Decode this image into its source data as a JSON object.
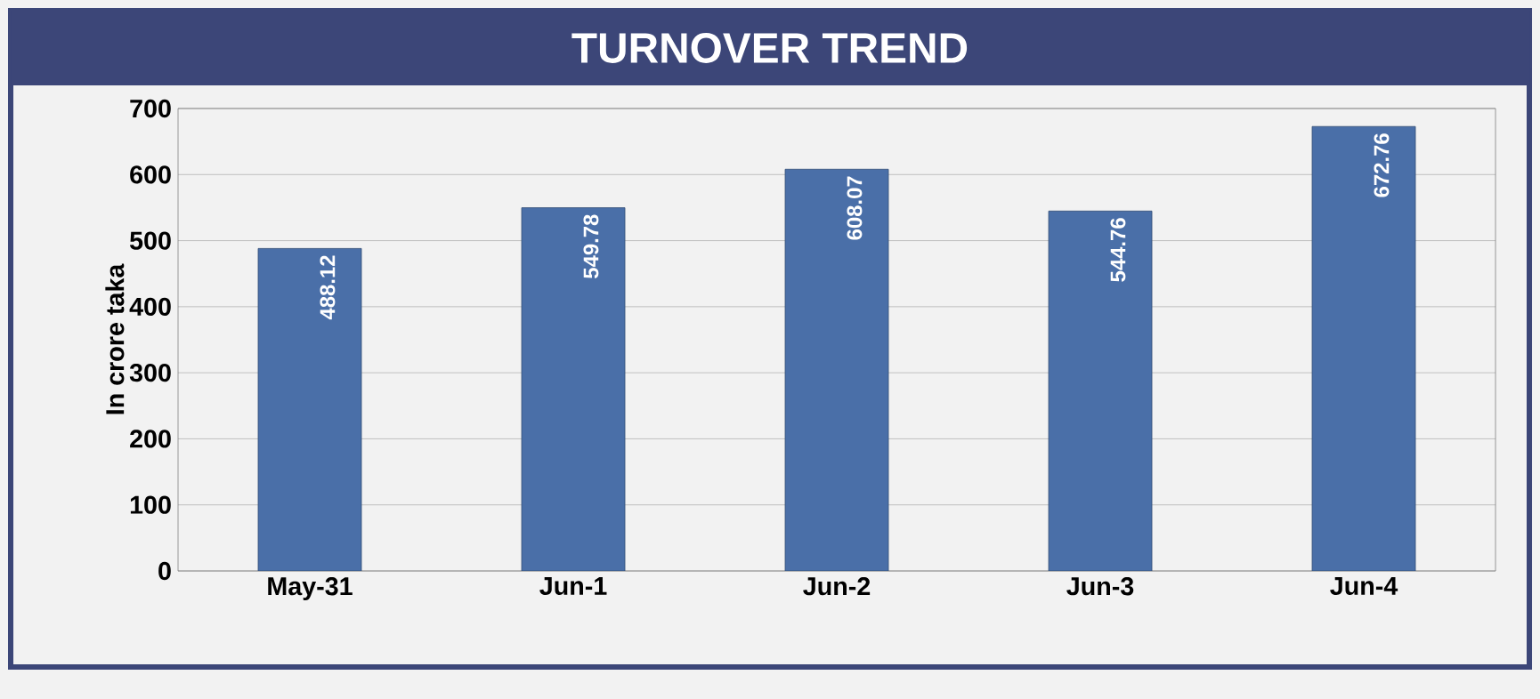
{
  "chart_data": {
    "type": "bar",
    "title": "TURNOVER TREND",
    "ylabel": "In crore taka",
    "categories": [
      "May-31",
      "Jun-1",
      "Jun-2",
      "Jun-3",
      "Jun-4"
    ],
    "values": [
      488.12,
      549.78,
      608.07,
      544.76,
      672.76
    ],
    "color": "#4a6fa8",
    "ylim": [
      0,
      700
    ],
    "yticks": [
      0,
      100,
      200,
      300,
      400,
      500,
      600,
      700
    ],
    "grid": "y",
    "data_labels": true
  }
}
